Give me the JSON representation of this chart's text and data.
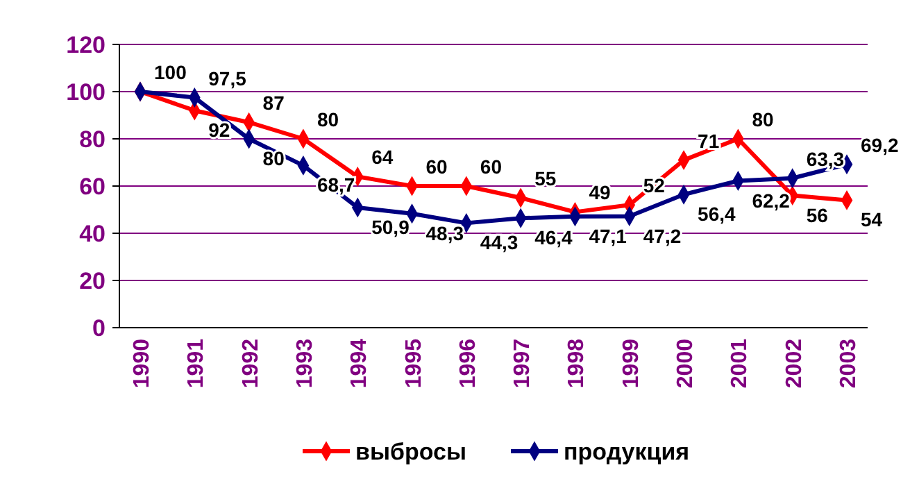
{
  "chart_data": {
    "type": "line",
    "categories": [
      "1990",
      "1991",
      "1992",
      "1993",
      "1994",
      "1995",
      "1996",
      "1997",
      "1998",
      "1999",
      "2000",
      "2001",
      "2002",
      "2003"
    ],
    "series": [
      {
        "name": "выбросы",
        "color": "#ff0000",
        "values": [
          100,
          92,
          87,
          80,
          64,
          60,
          60,
          55,
          49,
          52,
          71,
          80,
          56,
          54
        ],
        "value_labels": [
          "100",
          "92",
          "87",
          "80",
          "64",
          "60",
          "60",
          "55",
          "49",
          "52",
          "71",
          "80",
          "56",
          "54"
        ]
      },
      {
        "name": "продукция",
        "color": "#000080",
        "values": [
          100,
          97.5,
          80,
          68.7,
          50.9,
          48.3,
          44.3,
          46.4,
          47.1,
          47.2,
          56.4,
          62.2,
          63.3,
          69.2
        ],
        "value_labels": [
          null,
          "97,5",
          "80",
          "68,7",
          "50,9",
          "48,3",
          "44,3",
          "46,4",
          "47,1",
          "47,2",
          "56,4",
          "62,2",
          "63,3",
          "69,2"
        ]
      }
    ],
    "ylim": [
      0,
      120
    ],
    "yticks": [
      0,
      20,
      40,
      60,
      80,
      100,
      120
    ],
    "grid": "y",
    "legend": "bottom",
    "marker": "diamond",
    "line_style": "solid"
  }
}
